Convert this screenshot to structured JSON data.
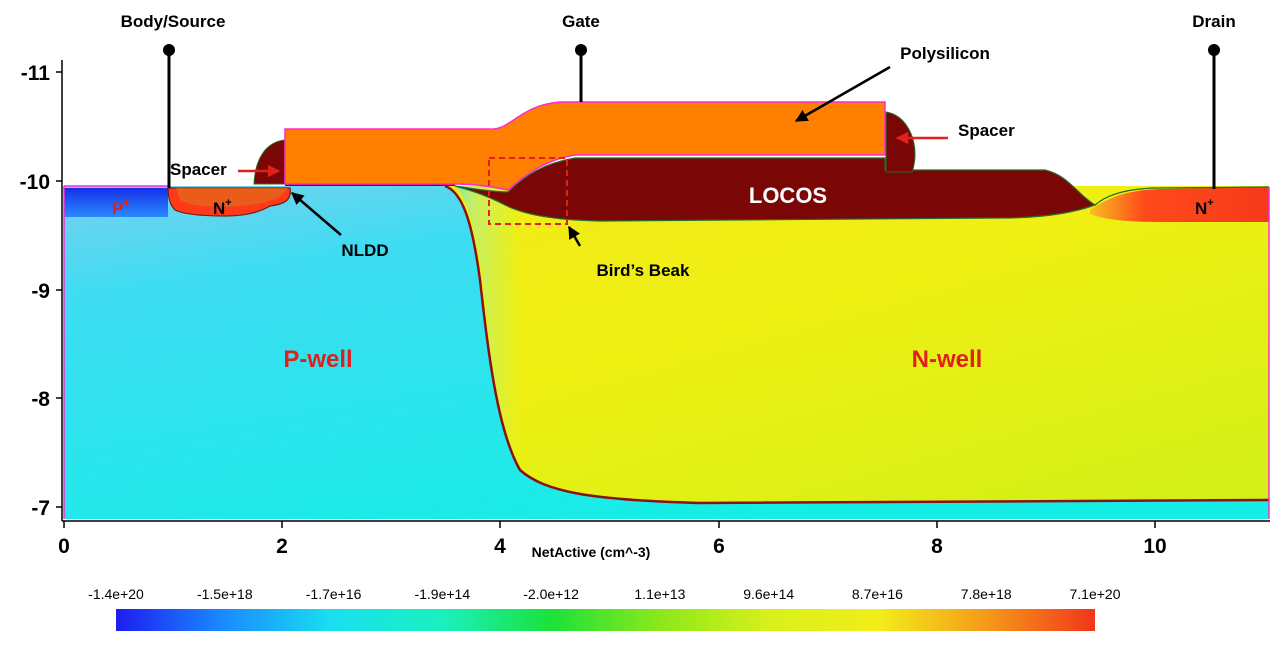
{
  "terminals": {
    "body_source": "Body/Source",
    "gate": "Gate",
    "drain": "Drain"
  },
  "callouts": {
    "polysilicon": "Polysilicon",
    "spacer_left": "Spacer",
    "spacer_right": "Spacer",
    "nldd": "NLDD",
    "birds_beak": "Bird’s Beak"
  },
  "regions": {
    "locos": "LOCOS",
    "p_well": "P-well",
    "n_well": "N-well",
    "p_plus": "P",
    "n_plus_left": "N",
    "n_plus_right": "N",
    "plus_sign": "+"
  },
  "axes": {
    "x_ticks": [
      "0",
      "2",
      "4",
      "6",
      "8",
      "10"
    ],
    "y_ticks": [
      "-11",
      "-10",
      "-9",
      "-8",
      "-7"
    ],
    "xlabel": "NetActive (cm^-3)"
  },
  "colorbar": {
    "labels": [
      "-1.4e+20",
      "-1.5e+18",
      "-1.7e+16",
      "-1.9e+14",
      "-2.0e+12",
      "1.1e+13",
      "9.6e+14",
      "8.7e+16",
      "7.8e+18",
      "7.1e+20"
    ],
    "stops": [
      "#1d1df0",
      "#1a8cff",
      "#19e0f0",
      "#1af0c0",
      "#1ae23a",
      "#8ce81a",
      "#d8f01a",
      "#f2ee1a",
      "#f59a1a",
      "#f2361a"
    ]
  },
  "colors": {
    "p_well": "#1ee5ee",
    "n_well": "#eef012",
    "polysilicon": "#ff7f00",
    "oxide": "#7a0606",
    "arrow_red": "#e0211b"
  }
}
